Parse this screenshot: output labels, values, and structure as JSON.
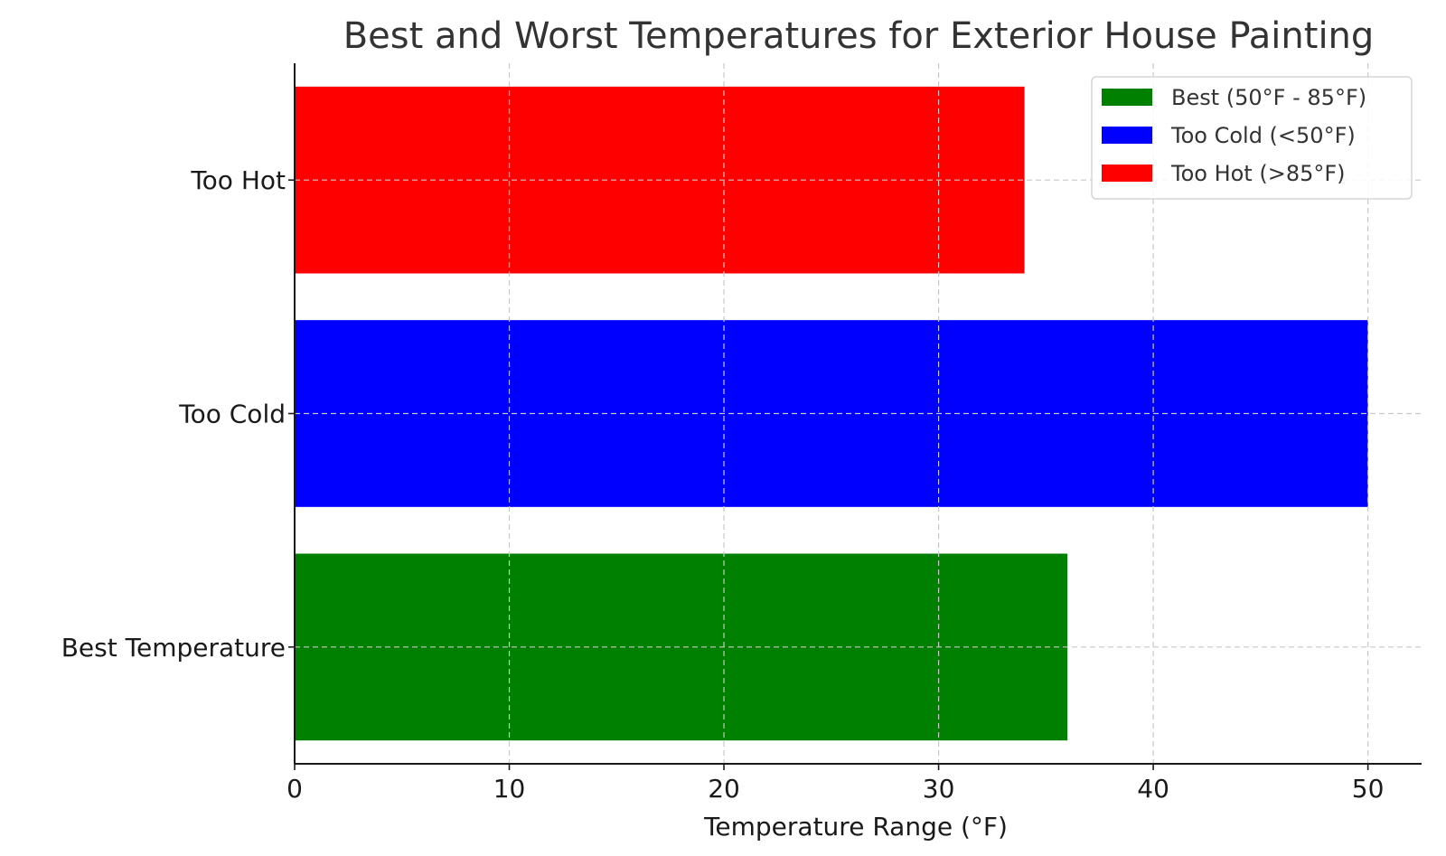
{
  "chart_data": {
    "type": "bar",
    "orientation": "horizontal",
    "title": "Best and Worst Temperatures for Exterior House Painting",
    "xlabel": "Temperature Range (°F)",
    "ylabel": "",
    "categories": [
      "Best Temperature",
      "Too Cold",
      "Too Hot"
    ],
    "values": [
      36,
      50,
      34
    ],
    "colors": [
      "#008000",
      "#0000ff",
      "#ff0000"
    ],
    "xlim": [
      0,
      52.5
    ],
    "xticks": [
      0,
      10,
      20,
      30,
      40,
      50
    ],
    "grid": true,
    "legend": {
      "placement": "top-right",
      "entries": [
        {
          "label": "Best (50°F - 85°F)",
          "color": "#008000"
        },
        {
          "label": "Too Cold (<50°F)",
          "color": "#0000ff"
        },
        {
          "label": "Too Hot (>85°F)",
          "color": "#ff0000"
        }
      ]
    }
  }
}
